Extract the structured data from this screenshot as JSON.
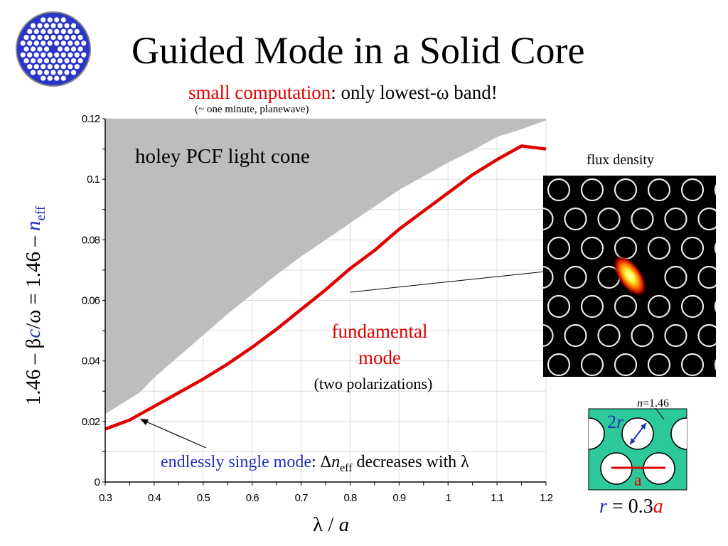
{
  "slide": {
    "title": "Guided Mode in a Solid Core",
    "subtitle_red": "small computation",
    "subtitle_rest": ": only lowest-ω band!",
    "note": "(~ one minute, planewave)"
  },
  "colors": {
    "red": "#e00000",
    "blue": "#1f2fbf",
    "gray_region": "#bdbdbd",
    "fiber_blue": "#2b36c8",
    "cell_green": "#2ec99a"
  },
  "axes": {
    "ylabel_prefix": "1.46 – β",
    "ylabel_c": "c",
    "ylabel_mid": "/ω = 1.46 – ",
    "ylabel_n": "n",
    "ylabel_sub": "eff",
    "xlabel_lambda": "λ",
    "xlabel_rest": " / ",
    "xlabel_a": "a"
  },
  "annotations": {
    "cone": "holey PCF light cone",
    "fund_line1": "fundamental",
    "fund_line2": "mode",
    "polarizations": "(two polarizations)",
    "esm_blue": "endlessly single mode",
    "esm_delta": ": Δ",
    "esm_n": "n",
    "esm_sub": "eff",
    "esm_rest": " decreases with λ",
    "flux": "flux density"
  },
  "inset": {
    "n_label": "n",
    "n_value": "=1.46",
    "two_r": "2",
    "two_r_var": "r",
    "a_label": "a",
    "relation_r": "r",
    "relation_mid": " = 0.3",
    "relation_a": "a"
  },
  "chart_data": {
    "type": "line",
    "xlabel": "λ / a",
    "ylabel": "1.46 – βc/ω = 1.46 – n_eff",
    "xlim": [
      0.3,
      1.2
    ],
    "ylim": [
      0,
      0.12
    ],
    "grid": true,
    "x_tick_labels": [
      "0.3",
      "0.4",
      "0.5",
      "0.6",
      "0.7",
      "0.8",
      "0.9",
      "1",
      "1.1",
      "1.2"
    ],
    "y_tick_labels": [
      "0",
      "0.02",
      "0.04",
      "0.06",
      "0.08",
      "0.1",
      "0.12"
    ],
    "x_ticks": [
      0.3,
      0.4,
      0.5,
      0.6,
      0.7,
      0.8,
      0.9,
      1.0,
      1.1,
      1.2
    ],
    "y_ticks": [
      0,
      0.02,
      0.04,
      0.06,
      0.08,
      0.1,
      0.12
    ],
    "series": [
      {
        "name": "holey PCF light cone",
        "style": "area",
        "x": [
          0.3,
          0.335,
          0.37,
          0.4,
          0.45,
          0.5,
          0.55,
          0.6,
          0.65,
          0.7,
          0.75,
          0.8,
          0.85,
          0.9,
          0.95,
          1.0,
          1.05,
          1.1,
          1.15,
          1.2
        ],
        "y": [
          0.0225,
          0.026,
          0.0295,
          0.0345,
          0.0415,
          0.0485,
          0.0555,
          0.062,
          0.0685,
          0.0745,
          0.08,
          0.0855,
          0.091,
          0.0965,
          0.101,
          0.1055,
          0.1095,
          0.114,
          0.1165,
          0.1195
        ]
      },
      {
        "name": "fundamental mode",
        "style": "line",
        "x": [
          0.3,
          0.35,
          0.4,
          0.45,
          0.5,
          0.55,
          0.6,
          0.65,
          0.7,
          0.75,
          0.8,
          0.85,
          0.9,
          0.95,
          1.0,
          1.05,
          1.1,
          1.15,
          1.2
        ],
        "y": [
          0.0175,
          0.0205,
          0.025,
          0.0295,
          0.034,
          0.039,
          0.0445,
          0.0505,
          0.057,
          0.0635,
          0.0705,
          0.0765,
          0.0835,
          0.0895,
          0.0955,
          0.1015,
          0.1065,
          0.111,
          0.11
        ]
      }
    ]
  }
}
